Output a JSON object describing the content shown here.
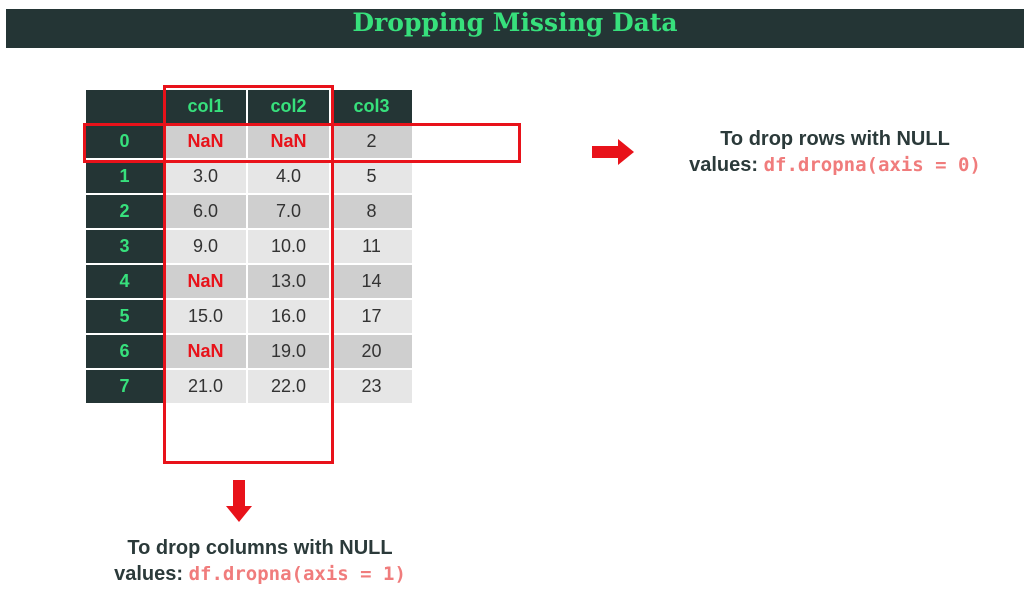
{
  "title": "Dropping Missing Data",
  "table": {
    "columns": [
      "col1",
      "col2",
      "col3"
    ],
    "rows": [
      {
        "index": "0",
        "cells": [
          "NaN",
          "NaN",
          "2"
        ]
      },
      {
        "index": "1",
        "cells": [
          "3.0",
          "4.0",
          "5"
        ]
      },
      {
        "index": "2",
        "cells": [
          "6.0",
          "7.0",
          "8"
        ]
      },
      {
        "index": "3",
        "cells": [
          "9.0",
          "10.0",
          "11"
        ]
      },
      {
        "index": "4",
        "cells": [
          "NaN",
          "13.0",
          "14"
        ]
      },
      {
        "index": "5",
        "cells": [
          "15.0",
          "16.0",
          "17"
        ]
      },
      {
        "index": "6",
        "cells": [
          "NaN",
          "19.0",
          "20"
        ]
      },
      {
        "index": "7",
        "cells": [
          "21.0",
          "22.0",
          "23"
        ]
      }
    ]
  },
  "row_note": {
    "text_line1": "To drop rows with NULL",
    "text_line2": "values:",
    "code": "df.dropna(axis = 0)"
  },
  "col_note": {
    "text_line1": "To drop columns with NULL",
    "text_line2": "values:",
    "code": "df.dropna(axis = 1)"
  },
  "colors": {
    "header_bg": "#243535",
    "header_text": "#37e07c",
    "highlight": "#e8121a",
    "code": "#f07c7c"
  }
}
